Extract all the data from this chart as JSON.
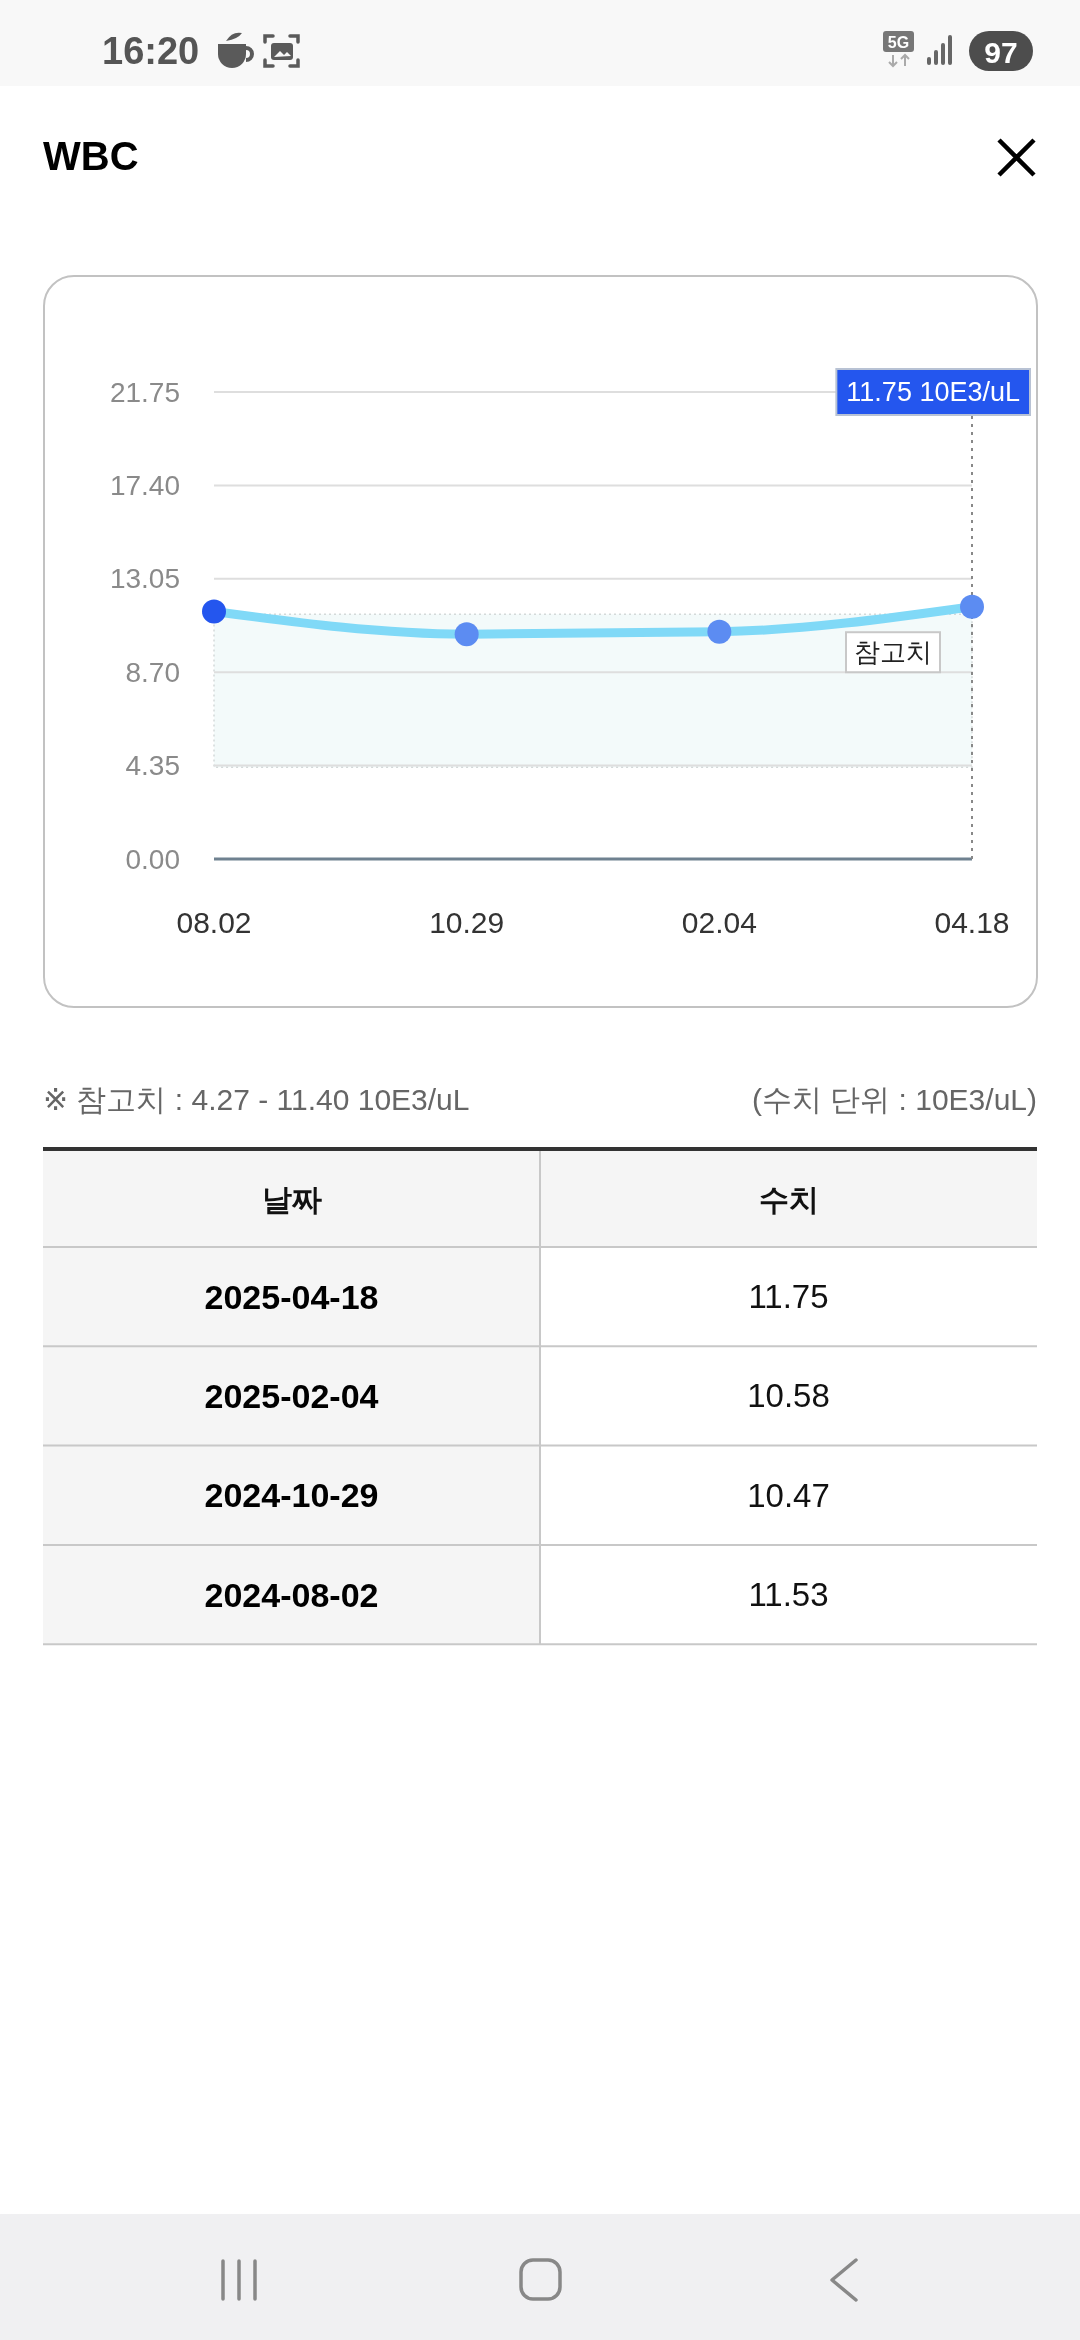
{
  "chart_data": {
    "type": "line",
    "title": "WBC",
    "categories": [
      "08.02",
      "10.29",
      "02.04",
      "04.18"
    ],
    "series": [
      {
        "color": "#80d9f7",
        "values": [
          11.53,
          10.47,
          10.58,
          11.75
        ]
      }
    ],
    "colors": [
      "#2456ee",
      "#5c8cf2",
      "#5c8cf2",
      "#5c8cf2"
    ],
    "marker": "circle",
    "line_style": "solid",
    "ylim": [
      0,
      21.75
    ],
    "yticks": [
      {
        "value": 0,
        "label": "0.00"
      },
      4.35,
      {
        "value": 8.7,
        "label": "8.70"
      },
      13.05,
      {
        "value": 17.4,
        "label": "17.40"
      },
      21.75
    ],
    "grid": "y",
    "bands": [
      {
        "axis": "y",
        "from": 4.27,
        "to": 11.4,
        "label": "참고치",
        "color": "#f3fafa"
      }
    ],
    "ref_lines": [
      {
        "axis": "x",
        "value": "04.18",
        "label": "11.75 10E3/uL",
        "line_style": "dotted",
        "color": "#888888"
      }
    ],
    "annotations": [
      "16:20",
      "5G",
      "97",
      "※ 참고치 : 4.27 - 11.40 10E3/uL",
      "(수치 단위 : 10E3/uL)",
      "날짜",
      "수치",
      "2025-04-18",
      "11.75",
      "2025-02-04",
      "10.58",
      "2024-10-29",
      "10.47",
      "2024-08-02",
      "11.53"
    ]
  }
}
